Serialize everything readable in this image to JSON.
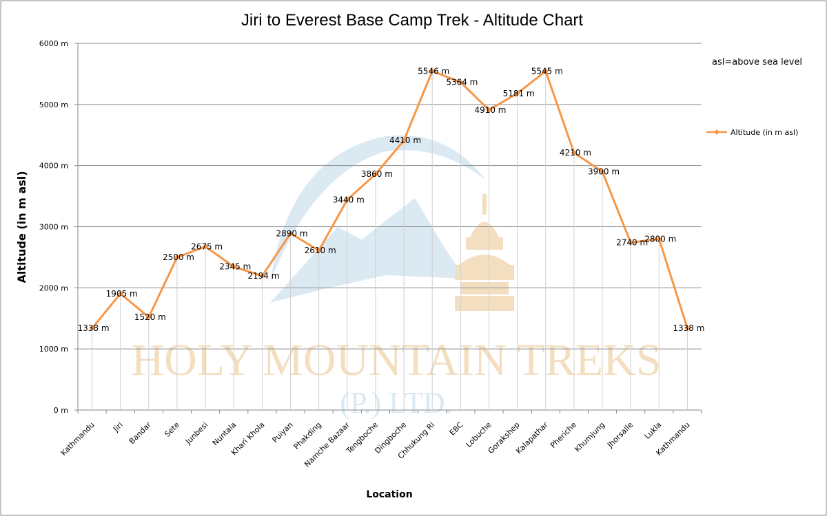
{
  "chart_data": {
    "type": "line",
    "title": "Jiri to Everest Base Camp Trek - Altitude Chart",
    "xlabel": "Location",
    "ylabel": "Altitude (in m asl)",
    "ylim": [
      0,
      6000
    ],
    "ytick_step": 1000,
    "ytick_suffix": " m",
    "grid": true,
    "legend_position": "right",
    "note": "asl=above sea level",
    "series_color": "#f79646",
    "categories": [
      "Kathmandu",
      "Jiri",
      "Bandar",
      "Sete",
      "Junbesi",
      "Nuntala",
      "Khari Khola",
      "Puiyan",
      "Phakding",
      "Namche Bazaar",
      "Tengboche",
      "Dingboche",
      "Chhukung Ri",
      "EBC",
      "Lobuche",
      "Gorakshep",
      "Kalapathar",
      "Pheriche",
      "Khumjung",
      "Jhorsalle",
      "Lukla",
      "Kathmandu"
    ],
    "series": [
      {
        "name": "Altitude (in  m asl)",
        "values": [
          1338,
          1905,
          1520,
          2500,
          2675,
          2345,
          2194,
          2890,
          2610,
          3440,
          3860,
          4410,
          5546,
          5364,
          4910,
          5181,
          5545,
          4210,
          3900,
          2740,
          2800,
          1338
        ],
        "labels": [
          "1338 m",
          "1905 m",
          "1520 m",
          "2500 m",
          "2675 m",
          "2345 m",
          "2194 m",
          "2890 m",
          "2610 m",
          "3440 m",
          "3860 m",
          "4410 m",
          "5546 m",
          "5364 m",
          "4910 m",
          "5181 m",
          "5545 m",
          "4210 m",
          "3900 m",
          "2740 m",
          "2800 m",
          "1338 m"
        ]
      }
    ]
  },
  "watermark": {
    "line1": "HOLY MOUNTAIN TREKS",
    "line2": "(P.) LTD."
  }
}
